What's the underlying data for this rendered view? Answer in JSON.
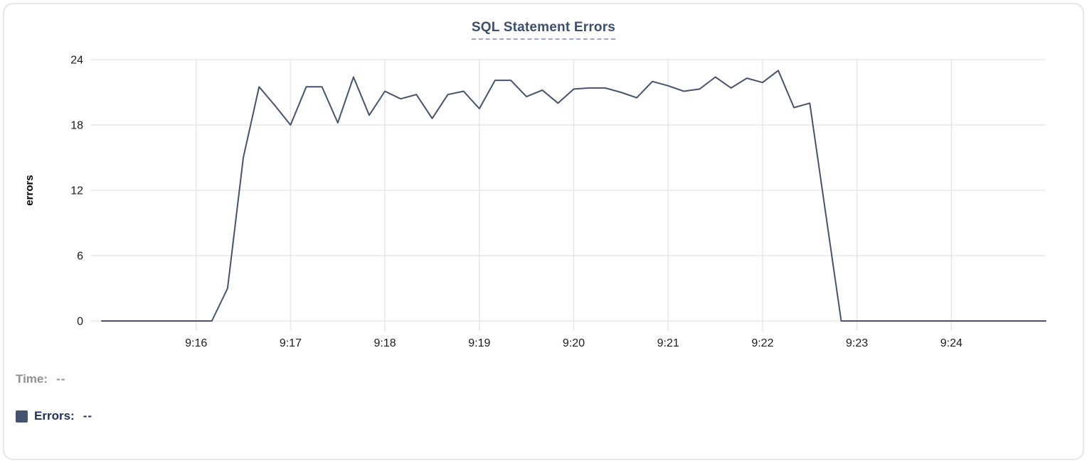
{
  "panel": {
    "background": "#ffffff",
    "border_color": "#e7e7e7"
  },
  "chart": {
    "title": "SQL Statement Errors"
  },
  "readout": {
    "time_label": "Time:",
    "time_value": "--",
    "errors_label": "Errors:",
    "errors_value": "--"
  },
  "colors": {
    "series": "#46536e",
    "title": "#3c4f70",
    "grid": "#e8e8e8",
    "tick_text": "#1b1b1b",
    "axis_label": "#000000",
    "time_label": "#8f8f8f",
    "errors_label": "#22315c"
  },
  "chart_data": {
    "type": "line",
    "title": "SQL Statement Errors",
    "xlabel": "",
    "ylabel": "errors",
    "ylim": [
      0,
      24
    ],
    "y_ticks": [
      0,
      6,
      12,
      18,
      24
    ],
    "x_ticks": [
      "9:16",
      "9:17",
      "9:18",
      "9:19",
      "9:20",
      "9:21",
      "9:22",
      "9:23",
      "9:24"
    ],
    "grid": true,
    "legend_position": "bottom-left",
    "x": [
      "9:15:00",
      "9:15:10",
      "9:15:20",
      "9:15:30",
      "9:15:40",
      "9:15:50",
      "9:16:00",
      "9:16:10",
      "9:16:20",
      "9:16:30",
      "9:16:40",
      "9:16:50",
      "9:17:00",
      "9:17:10",
      "9:17:20",
      "9:17:30",
      "9:17:40",
      "9:17:50",
      "9:18:00",
      "9:18:10",
      "9:18:20",
      "9:18:30",
      "9:18:40",
      "9:18:50",
      "9:19:00",
      "9:19:10",
      "9:19:20",
      "9:19:30",
      "9:19:40",
      "9:19:50",
      "9:20:00",
      "9:20:10",
      "9:20:20",
      "9:20:30",
      "9:20:40",
      "9:20:50",
      "9:21:00",
      "9:21:10",
      "9:21:20",
      "9:21:30",
      "9:21:40",
      "9:21:50",
      "9:22:00",
      "9:22:10",
      "9:22:20",
      "9:22:30",
      "9:22:40",
      "9:22:50",
      "9:23:00",
      "9:23:10",
      "9:23:20",
      "9:23:30",
      "9:23:40",
      "9:23:50",
      "9:24:00",
      "9:24:10",
      "9:24:20",
      "9:24:30",
      "9:24:40",
      "9:24:50",
      "9:25:00"
    ],
    "series": [
      {
        "name": "Errors",
        "color": "#46536e",
        "values": [
          0,
          0,
          0,
          0,
          0,
          0,
          0,
          0,
          3,
          15,
          21.5,
          19.8,
          18,
          21.5,
          21.5,
          18.2,
          22.4,
          18.9,
          21.1,
          20.4,
          20.8,
          18.6,
          20.8,
          21.1,
          19.5,
          22.1,
          22.1,
          20.6,
          21.2,
          20,
          21.3,
          21.4,
          21.4,
          21,
          20.5,
          22,
          21.6,
          21.1,
          21.3,
          22.4,
          21.4,
          22.3,
          21.9,
          23,
          19.6,
          20,
          10,
          0,
          0,
          0,
          0,
          0,
          0,
          0,
          0,
          0,
          0,
          0,
          0,
          0,
          0
        ]
      }
    ]
  }
}
